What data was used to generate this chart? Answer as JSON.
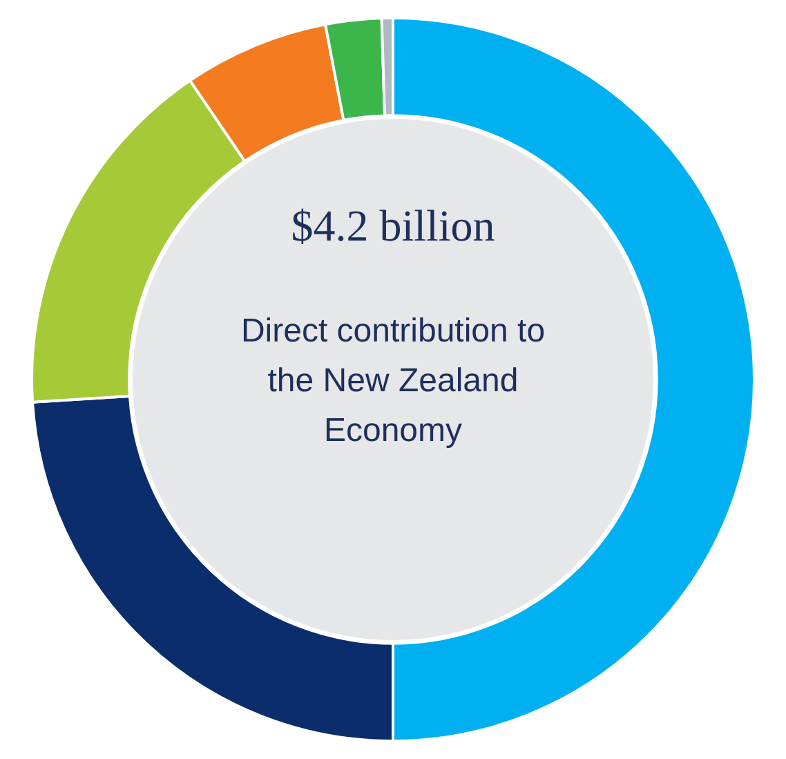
{
  "chart_data": {
    "type": "donut",
    "title": "$4.2 billion",
    "annotations": [
      "Direct contribution to the New Zealand Economy"
    ],
    "categories": [
      null,
      null,
      null,
      null,
      null,
      null
    ],
    "values": [
      50,
      24,
      16.5,
      6.5,
      2.5,
      0.5
    ],
    "colors": [
      "#00b0f0",
      "#0b2d6b",
      "#a6c938",
      "#f47b20",
      "#3cb54a",
      "#b0b8c0"
    ],
    "legend": false
  }
}
